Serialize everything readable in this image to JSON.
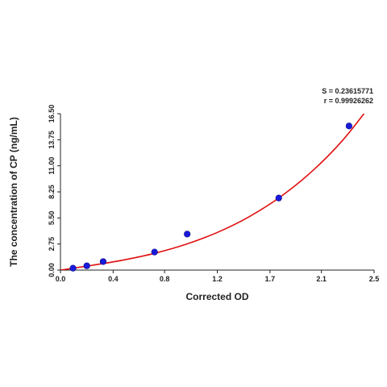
{
  "chart_data": {
    "type": "scatter",
    "xlabel": "Corrected OD",
    "ylabel": "The concentration of CP (ng/mL)",
    "xlim": [
      0,
      2.5
    ],
    "ylim": [
      0,
      16.5
    ],
    "x_ticks": [
      "0.0",
      "0.4",
      "0.8",
      "1.2",
      "1.7",
      "2.1",
      "2.5"
    ],
    "x_tick_values": [
      0,
      0.42,
      0.83,
      1.25,
      1.67,
      2.08,
      2.5
    ],
    "y_ticks": [
      "0.00",
      "2.75",
      "5.50",
      "8.25",
      "11.00",
      "13.75",
      "16.50"
    ],
    "y_tick_values": [
      0,
      2.75,
      5.5,
      8.25,
      11,
      13.75,
      16.5
    ],
    "grid": false,
    "series": [
      {
        "color": "#1a1adb",
        "points": [
          {
            "x": 0.1,
            "y": 0.2
          },
          {
            "x": 0.21,
            "y": 0.45
          },
          {
            "x": 0.34,
            "y": 0.9
          },
          {
            "x": 0.75,
            "y": 1.9
          },
          {
            "x": 1.01,
            "y": 3.8
          },
          {
            "x": 1.74,
            "y": 7.6
          },
          {
            "x": 2.3,
            "y": 15.2
          }
        ]
      }
    ],
    "fit_curve": {
      "color": "#e01010",
      "points": [
        {
          "x": 0.0,
          "y": 0.0
        },
        {
          "x": 0.25,
          "y": 0.5
        },
        {
          "x": 0.5,
          "y": 1.06
        },
        {
          "x": 0.75,
          "y": 1.77
        },
        {
          "x": 1.0,
          "y": 2.72
        },
        {
          "x": 1.25,
          "y": 3.97
        },
        {
          "x": 1.5,
          "y": 5.6
        },
        {
          "x": 1.75,
          "y": 7.7
        },
        {
          "x": 2.0,
          "y": 10.36
        },
        {
          "x": 2.25,
          "y": 13.7
        },
        {
          "x": 2.5,
          "y": 17.9
        }
      ]
    },
    "stats": {
      "s_label": "S = 0.23615771",
      "r_label": "r = 0.99926262"
    }
  }
}
